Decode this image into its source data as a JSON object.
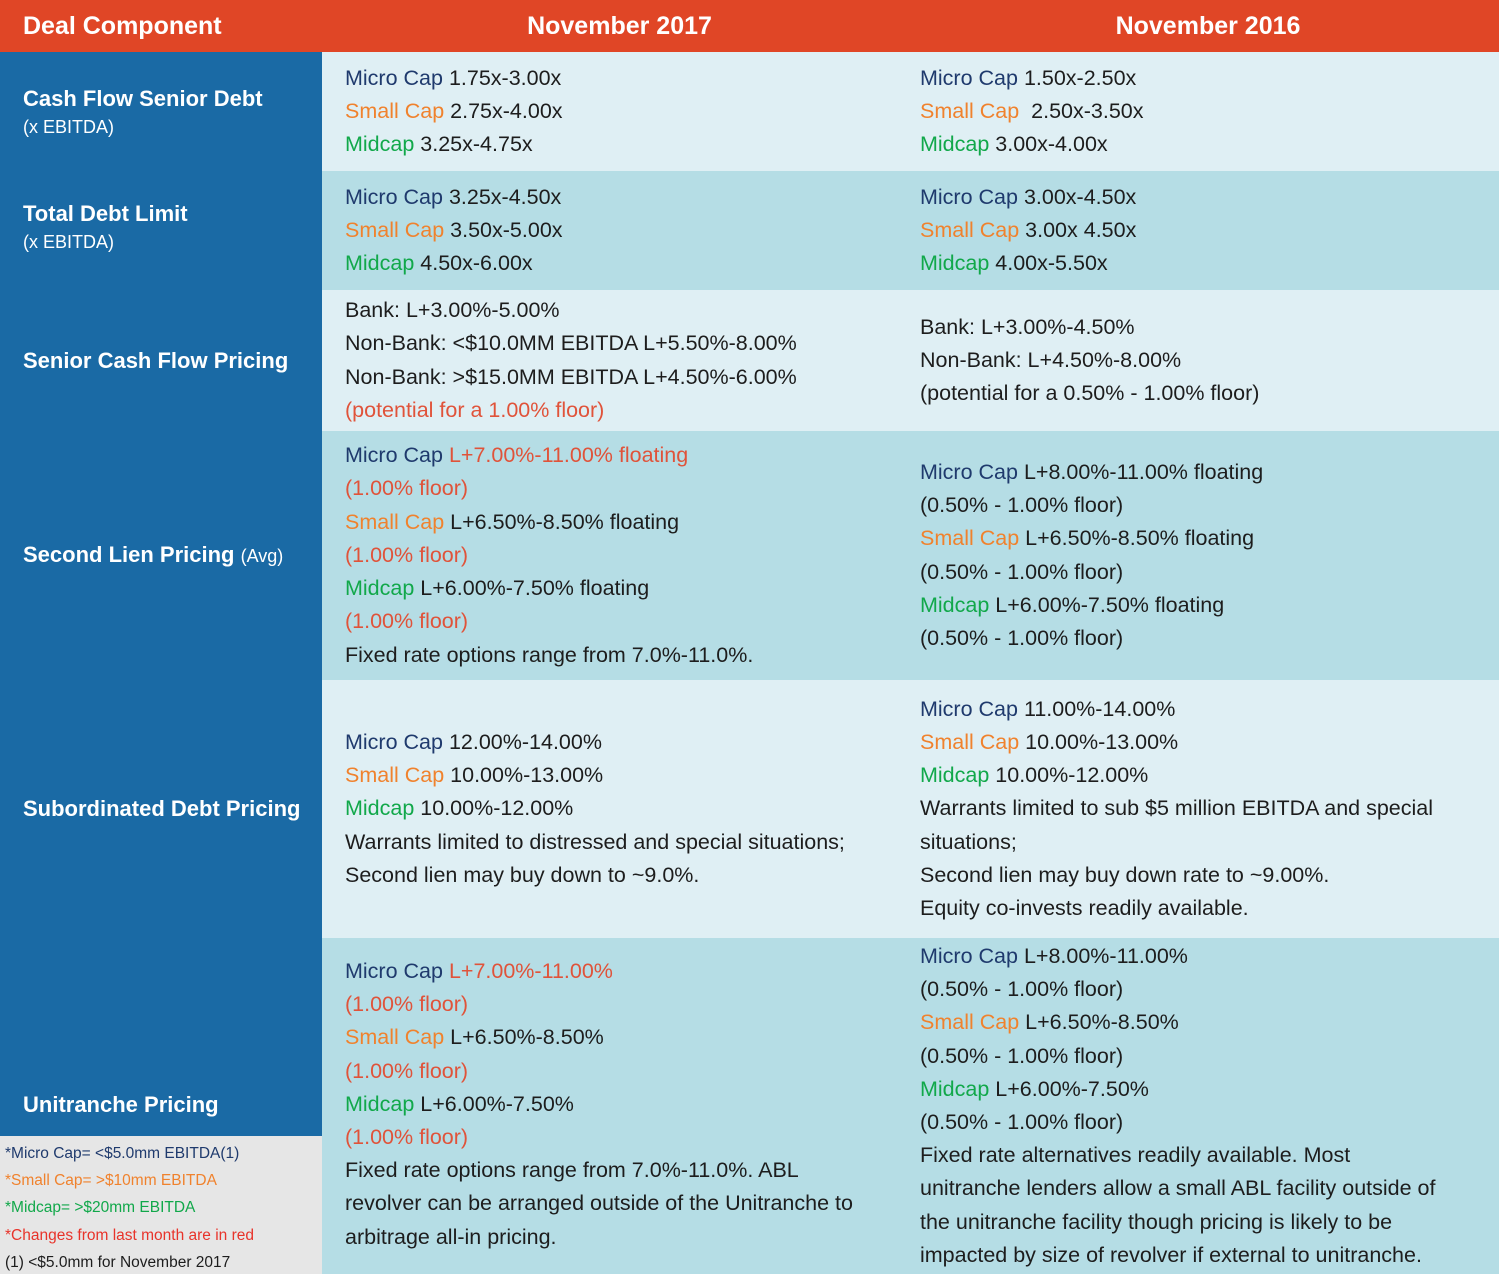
{
  "header": {
    "col0": "Deal Component",
    "col1": "November 2017",
    "col2": "November 2016"
  },
  "colors": {
    "header_bg": "#e04626",
    "left_col_bg": "#1a6aa5",
    "row_light": "#dfeff4",
    "row_dark": "#b5dde5",
    "micro_cap": "#1f3a6d",
    "small_cap": "#f0822d",
    "midcap": "#11a84a",
    "change_red": "#e0533a"
  },
  "tiers": {
    "micro": "Micro Cap",
    "small": "Small Cap",
    "mid": "Midcap"
  },
  "rows": {
    "cash_flow": {
      "label": "Cash Flow Senior Debt",
      "sublabel": "(x EBITDA)",
      "nov2017": {
        "micro": "1.75x-3.00x",
        "small": "2.75x-4.00x",
        "mid": "3.25x-4.75x"
      },
      "nov2016": {
        "micro": "1.50x-2.50x",
        "small": " 2.50x-3.50x",
        "mid": "3.00x-4.00x"
      }
    },
    "total_debt": {
      "label": "Total Debt Limit",
      "sublabel": "(x EBITDA)",
      "nov2017": {
        "micro": "3.25x-4.50x",
        "small": "3.50x-5.00x",
        "mid": "4.50x-6.00x"
      },
      "nov2016": {
        "micro": "3.00x-4.50x",
        "small": "3.00x 4.50x",
        "mid": "4.00x-5.50x"
      }
    },
    "senior_pricing": {
      "label": "Senior Cash Flow Pricing",
      "nov2017": {
        "line1": "Bank: L+3.00%-5.00%",
        "line2": "Non-Bank: <$10.0MM EBITDA L+5.50%-8.00%",
        "line3": "Non-Bank: >$15.0MM EBITDA L+4.50%-6.00%",
        "line4": "(potential for a 1.00% floor)"
      },
      "nov2016": {
        "line1": "Bank: L+3.00%-4.50%",
        "line2": "Non-Bank: L+4.50%-8.00%",
        "line3": "(potential for a 0.50% - 1.00% floor)"
      }
    },
    "second_lien": {
      "label": "Second Lien Pricing",
      "label_suffix": "(Avg)",
      "nov2017": {
        "micro": "L+7.00%-11.00% floating",
        "micro_floor": "(1.00% floor)",
        "small": "L+6.50%-8.50% floating",
        "small_floor": "(1.00% floor)",
        "mid": "L+6.00%-7.50% floating",
        "mid_floor": "(1.00% floor)",
        "note": "Fixed rate options range from 7.0%-11.0%."
      },
      "nov2016": {
        "micro": "L+8.00%-11.00% floating",
        "micro_floor": "(0.50% - 1.00% floor)",
        "small": "L+6.50%-8.50% floating",
        "small_floor": "(0.50% - 1.00% floor)",
        "mid": "L+6.00%-7.50% floating",
        "mid_floor": "(0.50% - 1.00% floor)"
      }
    },
    "sub_debt": {
      "label": "Subordinated Debt Pricing",
      "nov2017": {
        "micro": "12.00%-14.00%",
        "small": "10.00%-13.00%",
        "mid": "10.00%-12.00%",
        "note1": "Warrants limited to distressed and special situations;",
        "note2": "Second lien may buy down to ~9.0%."
      },
      "nov2016": {
        "micro": "11.00%-14.00%",
        "small": "10.00%-13.00%",
        "mid": "10.00%-12.00%",
        "note1": "Warrants limited to sub $5 million EBITDA and special",
        "note2": "situations;",
        "note3": "Second lien may buy down rate to ~9.00%.",
        "note4": "Equity co-invests readily available."
      }
    },
    "unitranche": {
      "label": "Unitranche Pricing",
      "nov2017": {
        "micro": "L+7.00%-11.00%",
        "micro_floor": "(1.00% floor)",
        "small": "L+6.50%-8.50%",
        "small_floor": "(1.00% floor)",
        "mid": "L+6.00%-7.50%",
        "mid_floor": "(1.00% floor)",
        "note1": "Fixed rate options range from 7.0%-11.0%. ABL",
        "note2": "revolver can be arranged outside of the Unitranche to",
        "note3": "arbitrage all-in pricing."
      },
      "nov2016": {
        "micro": "L+8.00%-11.00%",
        "micro_floor": "(0.50% - 1.00% floor)",
        "small": "L+6.50%-8.50%",
        "small_floor": "(0.50% - 1.00% floor)",
        "mid": "L+6.00%-7.50%",
        "mid_floor": "(0.50% - 1.00% floor)",
        "note1": "Fixed rate alternatives readily available. Most",
        "note2": "unitranche lenders allow a small ABL facility outside of",
        "note3": "the unitranche facility though pricing is likely to be",
        "note4": "impacted by size of revolver if external to unitranche."
      }
    }
  },
  "legend": {
    "micro": "*Micro Cap= <$5.0mm EBITDA(1)",
    "small": "*Small Cap= >$10mm EBITDA",
    "mid": "*Midcap= >$20mm EBITDA",
    "changes": "*Changes from last month are in red",
    "footnote": "(1) <$5.0mm for November 2017"
  }
}
